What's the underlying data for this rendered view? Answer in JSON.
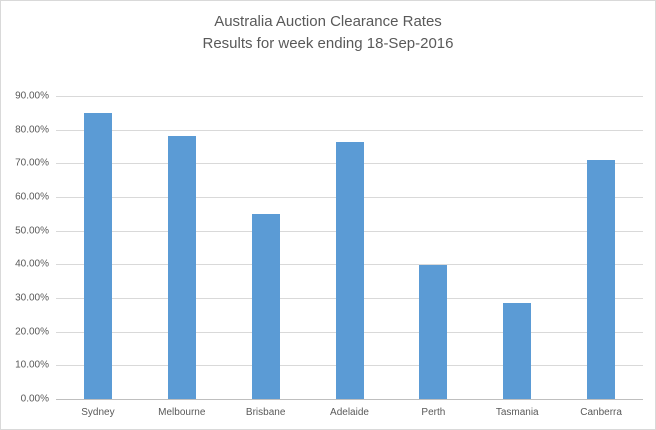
{
  "chart_data": {
    "type": "bar",
    "title": "Australia Auction Clearance Rates",
    "subtitle": "Results for week ending 18-Sep-2016",
    "categories": [
      "Sydney",
      "Melbourne",
      "Brisbane",
      "Adelaide",
      "Perth",
      "Tasmania",
      "Canberra"
    ],
    "values": [
      85.0,
      78.0,
      55.0,
      76.4,
      39.7,
      28.5,
      70.9
    ],
    "value_unit": "%",
    "xlabel": "",
    "ylabel": "",
    "ylim": [
      0,
      90
    ],
    "ytick_step": 10,
    "ytick_labels": [
      "0.00%",
      "10.00%",
      "20.00%",
      "30.00%",
      "40.00%",
      "50.00%",
      "60.00%",
      "70.00%",
      "80.00%",
      "90.00%"
    ],
    "grid": true,
    "legend_position": "none",
    "colors": {
      "bar": "#5b9bd5",
      "gridline": "#d9d9d9",
      "axis_line": "#bfbfbf",
      "text": "#595959",
      "frame_border": "#d9d9d9",
      "background": "#ffffff"
    }
  }
}
